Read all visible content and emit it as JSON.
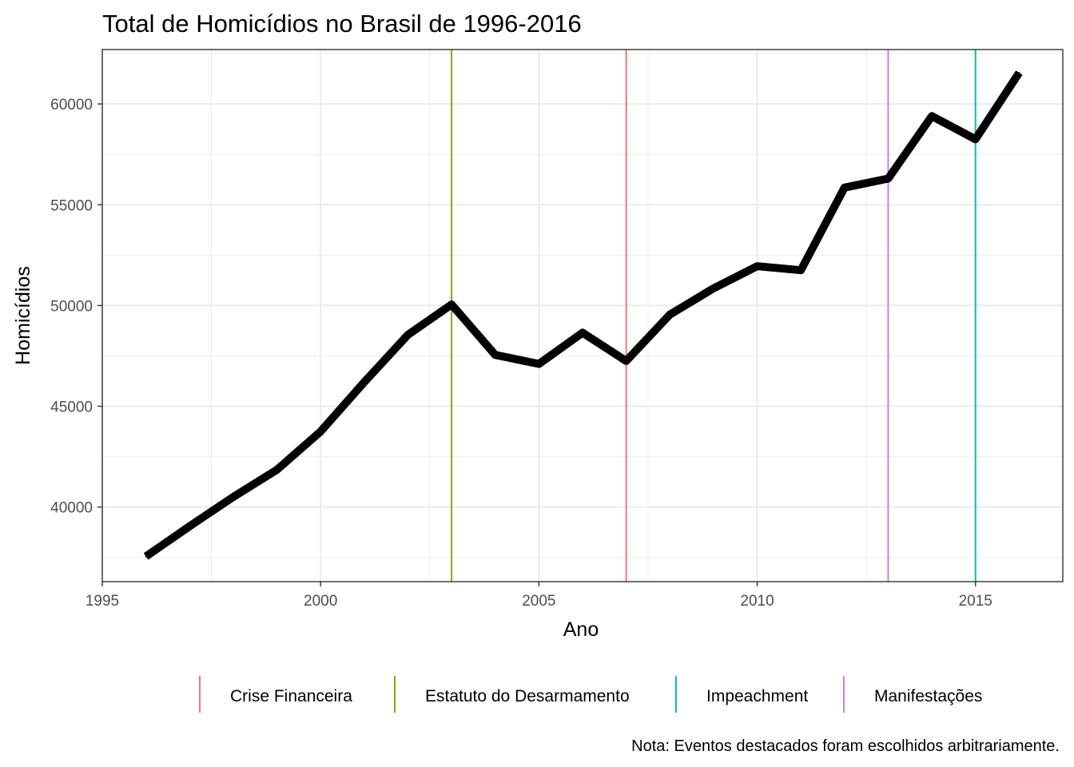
{
  "chart_data": {
    "type": "line",
    "title": "Total de Homicídios no Brasil de 1996-2016",
    "xlabel": "Ano",
    "ylabel": "Homicídios",
    "caption": "Nota: Eventos destacados foram escolhidos arbitrariamente.",
    "xlim": [
      1995,
      2017
    ],
    "ylim": [
      36300,
      62700
    ],
    "x_ticks": [
      1995,
      2000,
      2005,
      2010,
      2015
    ],
    "x_tick_labels": [
      "1995",
      "2000",
      "2005",
      "2010",
      "2015"
    ],
    "y_ticks": [
      40000,
      45000,
      50000,
      55000,
      60000
    ],
    "y_tick_labels": [
      "40000",
      "45000",
      "50000",
      "55000",
      "60000"
    ],
    "grid": true,
    "line_color": "#000000",
    "x": [
      1996,
      1997,
      1998,
      1999,
      2000,
      2001,
      2002,
      2003,
      2004,
      2005,
      2006,
      2007,
      2008,
      2009,
      2010,
      2011,
      2012,
      2013,
      2014,
      2015,
      2016
    ],
    "values": [
      37550,
      39050,
      40500,
      41850,
      43750,
      46200,
      48550,
      50050,
      47550,
      47100,
      48650,
      47250,
      49550,
      50850,
      51950,
      51750,
      55850,
      56300,
      59400,
      58250,
      61550
    ],
    "events": [
      {
        "name": "Estatuto do Desarmamento",
        "year": 2003,
        "color": "#7CAE00"
      },
      {
        "name": "Crise Financeira",
        "year": 2007,
        "color": "#F8766D"
      },
      {
        "name": "Manifestações",
        "year": 2013,
        "color": "#C77CFF"
      },
      {
        "name": "Impeachment",
        "year": 2015,
        "color": "#00BFC4"
      }
    ],
    "legend": {
      "position": "bottom",
      "items": [
        {
          "label": "Crise Financeira",
          "color": "#F8766D"
        },
        {
          "label": "Estatuto do Desarmamento",
          "color": "#7CAE00"
        },
        {
          "label": "Impeachment",
          "color": "#00BFC4"
        },
        {
          "label": "Manifestações",
          "color": "#C77CFF"
        }
      ]
    }
  }
}
